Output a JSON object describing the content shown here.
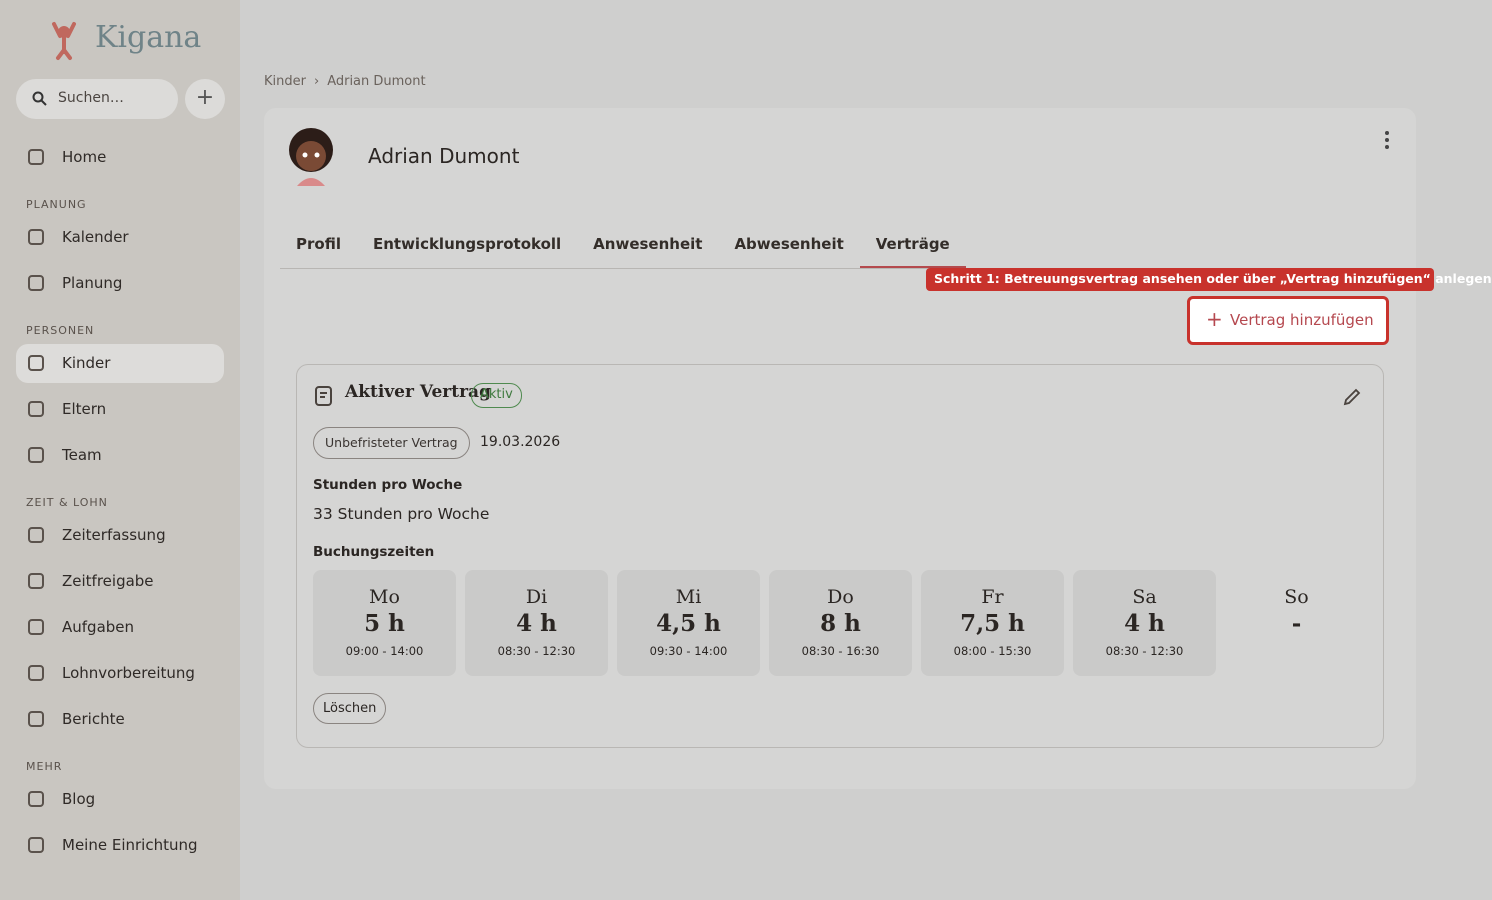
{
  "sidebar": {
    "logo": "Kigana",
    "search_placeholder": "Suchen…",
    "top": [
      {
        "label": "Home"
      }
    ],
    "sections": [
      {
        "title": "PLANUNG",
        "items": [
          {
            "label": "Kalender"
          },
          {
            "label": "Planung"
          }
        ]
      },
      {
        "title": "PERSONEN",
        "items": [
          {
            "label": "Kinder",
            "active": true
          },
          {
            "label": "Eltern"
          },
          {
            "label": "Team"
          }
        ]
      },
      {
        "title": "ZEIT & LOHN",
        "items": [
          {
            "label": "Zeiterfassung"
          },
          {
            "label": "Zeitfreigabe"
          },
          {
            "label": "Aufgaben"
          },
          {
            "label": "Lohnvorbereitung"
          },
          {
            "label": "Berichte"
          }
        ]
      },
      {
        "title": "MEHR",
        "items": [
          {
            "label": "Blog"
          },
          {
            "label": "Meine Einrichtung"
          }
        ]
      }
    ]
  },
  "breadcrumb": {
    "items": [
      "Kinder",
      "Adrian Dumont"
    ],
    "separator": "›"
  },
  "child": {
    "name": "Adrian Dumont"
  },
  "tabs": [
    {
      "label": "Profil"
    },
    {
      "label": "Entwicklungsprotokoll"
    },
    {
      "label": "Anwesenheit"
    },
    {
      "label": "Abwesenheit"
    },
    {
      "label": "Verträge",
      "active": true
    }
  ],
  "tooltip": "Schritt 1: Betreuungsvertrag ansehen oder über „Vertrag hinzufügen“ anlegen",
  "add_button": "Vertrag hinzufügen",
  "contract": {
    "title": "Aktiver Vertrag",
    "status": "Aktiv",
    "type": "Unbefristeter Vertrag",
    "date": "19.03.2026",
    "hours_label": "Stunden pro Woche",
    "hours": "33 Stunden pro Woche",
    "booking_label": "Buchungszeiten",
    "days": [
      {
        "day": "Mo",
        "hours": "5 h",
        "time": "09:00 - 14:00"
      },
      {
        "day": "Di",
        "hours": "4 h",
        "time": "08:30 - 12:30"
      },
      {
        "day": "Mi",
        "hours": "4,5 h",
        "time": "09:30 - 14:00"
      },
      {
        "day": "Do",
        "hours": "8 h",
        "time": "08:30 - 16:30"
      },
      {
        "day": "Fr",
        "hours": "7,5 h",
        "time": "08:00 - 15:30"
      },
      {
        "day": "Sa",
        "hours": "4 h",
        "time": "08:30 - 12:30"
      },
      {
        "day": "So",
        "hours": "-"
      }
    ],
    "delete": "Löschen"
  }
}
